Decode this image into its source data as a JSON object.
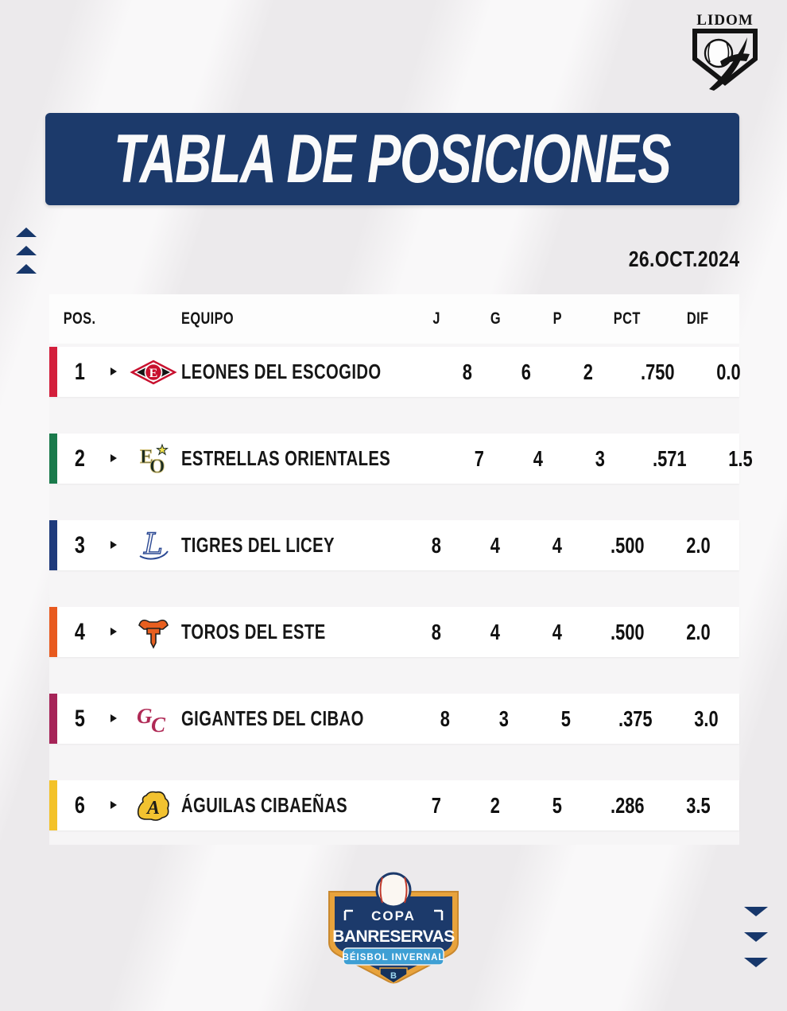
{
  "page": {
    "date": "26.OCT.2024"
  },
  "lidom": {
    "label": "LIDOM"
  },
  "banner": {
    "title": "TABLA DE POSICIONES",
    "bg": "#1C3A6B"
  },
  "table": {
    "columns": {
      "pos": "POS.",
      "team": "EQUIPO",
      "j": "J",
      "g": "G",
      "p": "P",
      "pct": "PCT",
      "dif": "DIF"
    },
    "rows": [
      {
        "pos": "1",
        "team": "LEONES DEL ESCOGIDO",
        "logo": "escogido",
        "accent": "#D31F3C",
        "j": "8",
        "g": "6",
        "p": "2",
        "pct": ".750",
        "dif": "0.0"
      },
      {
        "pos": "2",
        "team": "ESTRELLAS ORIENTALES",
        "logo": "estrellas",
        "accent": "#1A7A4B",
        "j": "7",
        "g": "4",
        "p": "3",
        "pct": ".571",
        "dif": "1.5"
      },
      {
        "pos": "3",
        "team": "TIGRES DEL LICEY",
        "logo": "licey",
        "accent": "#1F3B7C",
        "j": "8",
        "g": "4",
        "p": "4",
        "pct": ".500",
        "dif": "2.0"
      },
      {
        "pos": "4",
        "team": "TOROS DEL ESTE",
        "logo": "toros",
        "accent": "#E85A1F",
        "j": "8",
        "g": "4",
        "p": "4",
        "pct": ".500",
        "dif": "2.0"
      },
      {
        "pos": "5",
        "team": "GIGANTES DEL CIBAO",
        "logo": "gigantes",
        "accent": "#A62458",
        "j": "8",
        "g": "3",
        "p": "5",
        "pct": ".375",
        "dif": "3.0"
      },
      {
        "pos": "6",
        "team": "ÁGUILAS CIBAEÑAS",
        "logo": "aguilas",
        "accent": "#F3C229",
        "j": "7",
        "g": "2",
        "p": "5",
        "pct": ".286",
        "dif": "3.5"
      }
    ]
  },
  "footer": {
    "copa": "COPA",
    "banreservas": "BANRESERVAS",
    "ribbon": "BÉISBOL INVERNAL",
    "b": "B"
  },
  "chart_data": {
    "type": "table",
    "title": "TABLA DE POSICIONES",
    "date": "26.OCT.2024",
    "columns": [
      "POS.",
      "EQUIPO",
      "J",
      "G",
      "P",
      "PCT",
      "DIF"
    ],
    "rows": [
      [
        1,
        "LEONES DEL ESCOGIDO",
        8,
        6,
        2,
        0.75,
        0.0
      ],
      [
        2,
        "ESTRELLAS ORIENTALES",
        7,
        4,
        3,
        0.571,
        1.5
      ],
      [
        3,
        "TIGRES DEL LICEY",
        8,
        4,
        4,
        0.5,
        2.0
      ],
      [
        4,
        "TOROS DEL ESTE",
        8,
        4,
        4,
        0.5,
        2.0
      ],
      [
        5,
        "GIGANTES DEL CIBAO",
        8,
        3,
        5,
        0.375,
        3.0
      ],
      [
        6,
        "ÁGUILAS CIBAEÑAS",
        7,
        2,
        5,
        0.286,
        3.5
      ]
    ]
  }
}
